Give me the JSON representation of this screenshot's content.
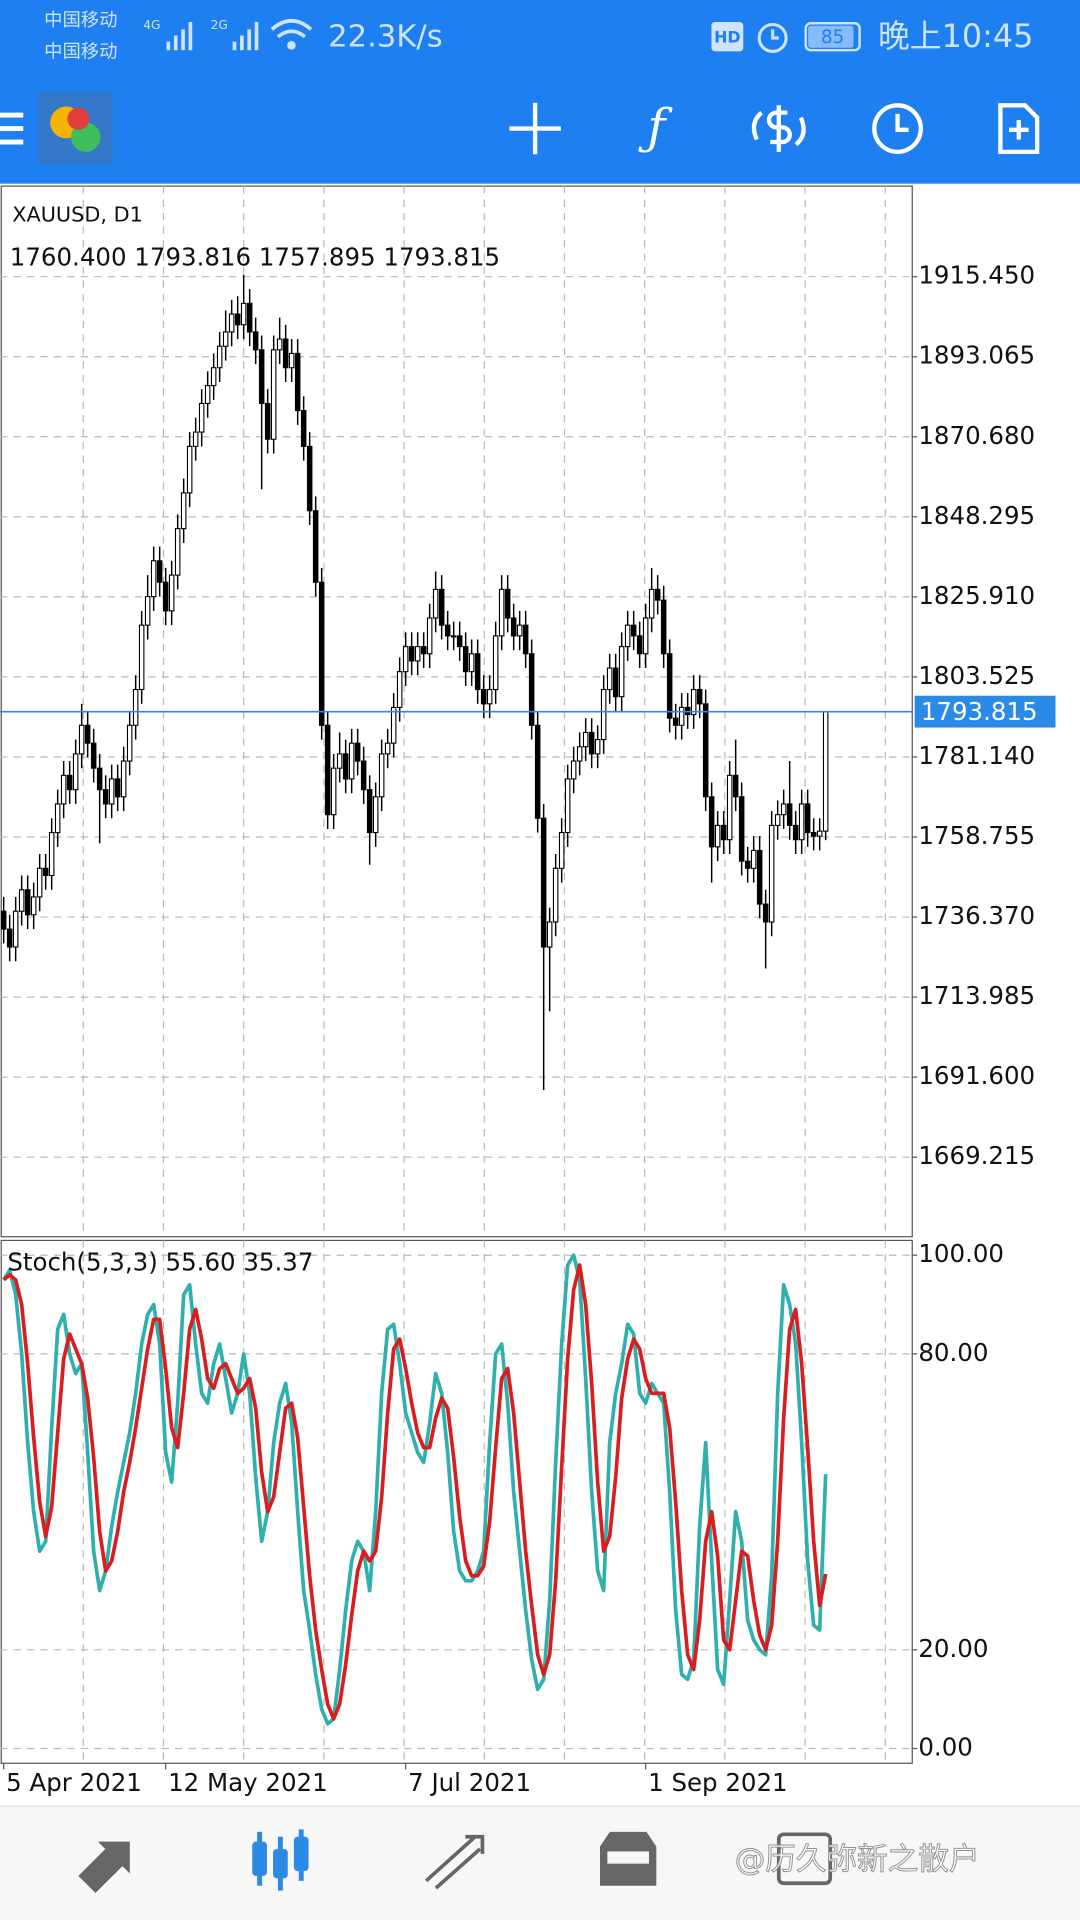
{
  "status_bar": {
    "carrier_1": "中国移动",
    "carrier_2": "中国移动",
    "network_1": "4G",
    "network_2": "2G",
    "speed": "22.3K/s",
    "hd": "HD",
    "battery": "85",
    "time": "晚上10:45"
  },
  "chart_data": [
    {
      "type": "candlestick",
      "title": "XAUUSD, D1",
      "subtitle": "1760.400 1793.816 1757.895 1793.815",
      "categories": [
        "5 Apr 2021",
        null,
        null,
        null,
        null,
        null,
        null,
        null,
        null,
        null,
        null,
        null,
        null,
        null,
        null,
        null,
        null,
        null,
        null,
        null,
        null,
        null,
        null,
        null,
        null,
        null,
        null,
        "12 May 2021",
        null,
        null,
        null,
        null,
        null,
        null,
        null,
        null,
        null,
        null,
        null,
        null,
        null,
        null,
        null,
        null,
        null,
        null,
        null,
        null,
        null,
        null,
        null,
        null,
        null,
        null,
        null,
        null,
        null,
        null,
        null,
        null,
        null,
        null,
        null,
        null,
        null,
        null,
        null,
        "7 Jul 2021",
        null,
        null,
        null,
        null,
        null,
        null,
        null,
        null,
        null,
        null,
        null,
        null,
        null,
        null,
        null,
        null,
        null,
        null,
        null,
        null,
        null,
        null,
        null,
        null,
        null,
        null,
        null,
        null,
        null,
        null,
        null,
        null,
        null,
        null,
        null,
        null,
        null,
        null,
        null,
        "1 Sep 2021",
        null,
        null,
        null,
        null,
        null,
        null,
        null,
        null,
        null,
        null,
        null,
        null,
        null,
        null,
        null,
        null,
        null,
        null,
        null,
        null,
        null,
        null,
        null,
        null,
        null,
        null,
        null,
        null,
        null,
        null
      ],
      "open": [
        1738,
        1733,
        1728,
        1738,
        1744,
        1737,
        1742,
        1750,
        1748,
        1760,
        1768,
        1776,
        1772,
        1782,
        1790,
        1785,
        1778,
        1772,
        1768,
        1775,
        1770,
        1780,
        1790,
        1800,
        1818,
        1826,
        1836,
        1830,
        1822,
        1832,
        1845,
        1855,
        1868,
        1872,
        1880,
        1885,
        1890,
        1896,
        1900,
        1905,
        1902,
        1908,
        1900,
        1895,
        1880,
        1870,
        1895,
        1898,
        1890,
        1894,
        1878,
        1868,
        1850,
        1830,
        1790,
        1765,
        1778,
        1782,
        1775,
        1785,
        1780,
        1772,
        1760,
        1770,
        1782,
        1785,
        1795,
        1805,
        1812,
        1808,
        1812,
        1810,
        1820,
        1828,
        1818,
        1815,
        1815,
        1812,
        1805,
        1810,
        1800,
        1796,
        1800,
        1815,
        1828,
        1820,
        1815,
        1818,
        1810,
        1790,
        1764,
        1728,
        1735,
        1750,
        1760,
        1775,
        1780,
        1784,
        1788,
        1782,
        1786,
        1800,
        1806,
        1798,
        1812,
        1818,
        1815,
        1810,
        1820,
        1828,
        1825,
        1810,
        1792,
        1790,
        1795,
        1793,
        1800,
        1796,
        1770,
        1756,
        1762,
        1758,
        1776,
        1770,
        1752,
        1750,
        1755,
        1740,
        1735,
        1762,
        1765,
        1768,
        1762,
        1758,
        1768,
        1760,
        1759,
        1760.4
      ],
      "high": [
        1742,
        1737,
        1742,
        1748,
        1748,
        1746,
        1754,
        1754,
        1764,
        1772,
        1780,
        1780,
        1786,
        1796,
        1794,
        1789,
        1782,
        1776,
        1779,
        1779,
        1784,
        1794,
        1804,
        1822,
        1832,
        1840,
        1840,
        1834,
        1836,
        1849,
        1859,
        1872,
        1876,
        1884,
        1889,
        1894,
        1900,
        1906,
        1909,
        1910,
        1916,
        1912,
        1904,
        1899,
        1884,
        1899,
        1904,
        1902,
        1898,
        1898,
        1882,
        1872,
        1854,
        1834,
        1794,
        1782,
        1788,
        1786,
        1789,
        1789,
        1784,
        1776,
        1774,
        1786,
        1789,
        1799,
        1809,
        1816,
        1816,
        1816,
        1816,
        1824,
        1833,
        1832,
        1822,
        1819,
        1819,
        1816,
        1814,
        1814,
        1804,
        1804,
        1819,
        1832,
        1832,
        1824,
        1822,
        1822,
        1814,
        1794,
        1768,
        1739,
        1754,
        1764,
        1779,
        1784,
        1788,
        1792,
        1792,
        1790,
        1804,
        1810,
        1810,
        1816,
        1822,
        1822,
        1819,
        1824,
        1834,
        1832,
        1829,
        1814,
        1796,
        1799,
        1799,
        1804,
        1804,
        1800,
        1774,
        1766,
        1766,
        1780,
        1786,
        1774,
        1756,
        1759,
        1759,
        1744,
        1766,
        1769,
        1772,
        1780,
        1766,
        1772,
        1772,
        1764,
        1764,
        1793.816
      ],
      "low": [
        1729,
        1724,
        1724,
        1734,
        1733,
        1733,
        1738,
        1744,
        1744,
        1756,
        1764,
        1768,
        1768,
        1778,
        1781,
        1774,
        1757,
        1764,
        1764,
        1766,
        1766,
        1776,
        1786,
        1796,
        1814,
        1822,
        1826,
        1818,
        1818,
        1828,
        1841,
        1851,
        1864,
        1868,
        1876,
        1881,
        1886,
        1892,
        1896,
        1898,
        1898,
        1896,
        1891,
        1856,
        1866,
        1866,
        1891,
        1886,
        1886,
        1874,
        1864,
        1846,
        1826,
        1786,
        1761,
        1761,
        1774,
        1771,
        1771,
        1776,
        1768,
        1751,
        1756,
        1766,
        1778,
        1781,
        1791,
        1801,
        1804,
        1804,
        1806,
        1806,
        1816,
        1814,
        1811,
        1811,
        1808,
        1801,
        1801,
        1796,
        1792,
        1792,
        1796,
        1811,
        1816,
        1811,
        1811,
        1806,
        1786,
        1760,
        1688,
        1710,
        1731,
        1746,
        1756,
        1771,
        1776,
        1780,
        1778,
        1778,
        1782,
        1796,
        1794,
        1794,
        1808,
        1811,
        1806,
        1806,
        1816,
        1821,
        1806,
        1788,
        1786,
        1786,
        1789,
        1789,
        1792,
        1766,
        1746,
        1752,
        1754,
        1754,
        1766,
        1748,
        1746,
        1746,
        1736,
        1722,
        1731,
        1758,
        1761,
        1758,
        1754,
        1754,
        1756,
        1755,
        1755,
        1757.895
      ],
      "close": [
        1733,
        1728,
        1738,
        1744,
        1737,
        1742,
        1750,
        1748,
        1760,
        1768,
        1776,
        1772,
        1782,
        1790,
        1785,
        1778,
        1772,
        1768,
        1775,
        1770,
        1780,
        1790,
        1800,
        1818,
        1826,
        1836,
        1830,
        1822,
        1832,
        1845,
        1855,
        1868,
        1872,
        1880,
        1885,
        1890,
        1896,
        1900,
        1905,
        1902,
        1908,
        1900,
        1895,
        1880,
        1870,
        1895,
        1898,
        1890,
        1894,
        1878,
        1868,
        1850,
        1830,
        1790,
        1765,
        1778,
        1782,
        1775,
        1785,
        1780,
        1772,
        1760,
        1770,
        1782,
        1785,
        1795,
        1805,
        1812,
        1808,
        1812,
        1810,
        1820,
        1828,
        1818,
        1815,
        1815,
        1812,
        1805,
        1810,
        1800,
        1796,
        1800,
        1815,
        1828,
        1820,
        1815,
        1818,
        1810,
        1790,
        1764,
        1728,
        1735,
        1750,
        1760,
        1775,
        1780,
        1784,
        1788,
        1782,
        1786,
        1800,
        1806,
        1798,
        1812,
        1818,
        1815,
        1810,
        1820,
        1828,
        1825,
        1810,
        1792,
        1790,
        1795,
        1793,
        1800,
        1796,
        1770,
        1756,
        1762,
        1758,
        1776,
        1770,
        1752,
        1750,
        1755,
        1740,
        1735,
        1762,
        1765,
        1768,
        1762,
        1758,
        1768,
        1760,
        1759,
        1760.4,
        1793.815
      ],
      "ylim": [
        1646.97,
        1940.78
      ],
      "yticks": [
        {
          "value": 1669.215,
          "label": "1669.215"
        },
        {
          "value": 1691.6,
          "label": "1691.600"
        },
        {
          "value": 1713.985,
          "label": "1713.985"
        },
        {
          "value": 1736.37,
          "label": "1736.370"
        },
        {
          "value": 1758.755,
          "label": "1758.755"
        },
        {
          "value": 1781.14,
          "label": "1781.140"
        },
        {
          "value": 1803.525,
          "label": "1803.525"
        },
        {
          "value": 1825.91,
          "label": "1825.910"
        },
        {
          "value": 1848.295,
          "label": "1848.295"
        },
        {
          "value": 1870.68,
          "label": "1870.680"
        },
        {
          "value": 1893.065,
          "label": "1893.065"
        },
        {
          "value": 1915.45,
          "label": "1915.450"
        }
      ],
      "grid": true,
      "up_color": "#ffffff",
      "down_color": "#000000",
      "current_price": {
        "value": 1793.815,
        "label": "1793.815"
      },
      "current_price_color": "#2b8ae6"
    },
    {
      "type": "line",
      "title": "Stoch(5,3,3) 55.60 35.37",
      "series": [
        {
          "color": "#2fb0ae",
          "values": [
            95,
            97,
            92,
            80,
            62,
            48,
            40,
            42,
            65,
            85,
            88,
            80,
            76,
            78,
            60,
            40,
            32,
            36,
            45,
            52,
            58,
            64,
            72,
            82,
            88,
            90,
            82,
            60,
            54,
            70,
            92,
            94,
            82,
            72,
            70,
            78,
            82,
            75,
            68,
            72,
            80,
            72,
            55,
            42,
            48,
            62,
            70,
            74,
            66,
            48,
            32,
            24,
            15,
            8,
            5,
            6,
            16,
            28,
            38,
            42,
            40,
            32,
            48,
            72,
            85,
            86,
            78,
            68,
            64,
            60,
            58,
            66,
            76,
            72,
            60,
            44,
            36,
            34,
            34,
            36,
            40,
            62,
            80,
            82,
            70,
            52,
            40,
            28,
            18,
            12,
            14,
            30,
            58,
            82,
            98,
            100,
            95,
            75,
            52,
            36,
            32,
            62,
            72,
            78,
            86,
            84,
            72,
            70,
            74,
            72,
            70,
            52,
            28,
            15,
            14,
            18,
            45,
            62,
            38,
            16,
            13,
            30,
            48,
            42,
            26,
            22,
            20,
            19,
            35,
            72,
            94,
            90,
            82,
            62,
            38,
            25,
            24,
            55.6
          ]
        },
        {
          "color": "#d81e1e",
          "values": [
            95,
            96,
            95,
            90,
            78,
            63,
            50,
            43,
            49,
            64,
            79,
            84,
            81,
            78,
            71,
            59,
            44,
            36,
            38,
            44,
            52,
            58,
            65,
            73,
            81,
            87,
            87,
            77,
            65,
            61,
            72,
            85,
            89,
            83,
            75,
            73,
            77,
            78,
            75,
            72,
            73,
            75,
            69,
            56,
            48,
            51,
            60,
            69,
            70,
            63,
            49,
            35,
            24,
            16,
            9,
            6,
            9,
            17,
            27,
            36,
            40,
            38,
            40,
            51,
            68,
            81,
            83,
            77,
            70,
            64,
            61,
            61,
            67,
            71,
            69,
            59,
            47,
            38,
            35,
            35,
            37,
            46,
            61,
            75,
            77,
            68,
            54,
            40,
            29,
            19,
            15,
            19,
            34,
            57,
            79,
            93,
            98,
            90,
            74,
            54,
            40,
            43,
            55,
            71,
            79,
            83,
            81,
            75,
            72,
            72,
            72,
            65,
            50,
            32,
            19,
            16,
            26,
            42,
            48,
            39,
            22,
            20,
            30,
            40,
            39,
            30,
            23,
            20,
            25,
            42,
            67,
            85,
            89,
            78,
            61,
            42,
            29,
            35.37
          ]
        }
      ],
      "ylim": [
        -3,
        103
      ],
      "yticks": [
        {
          "value": 0,
          "label": "0.00"
        },
        {
          "value": 20,
          "label": "20.00"
        },
        {
          "value": 80,
          "label": "80.00"
        },
        {
          "value": 100,
          "label": "100.00"
        }
      ],
      "grid": true
    }
  ],
  "watermark": "@历久弥新之散户"
}
